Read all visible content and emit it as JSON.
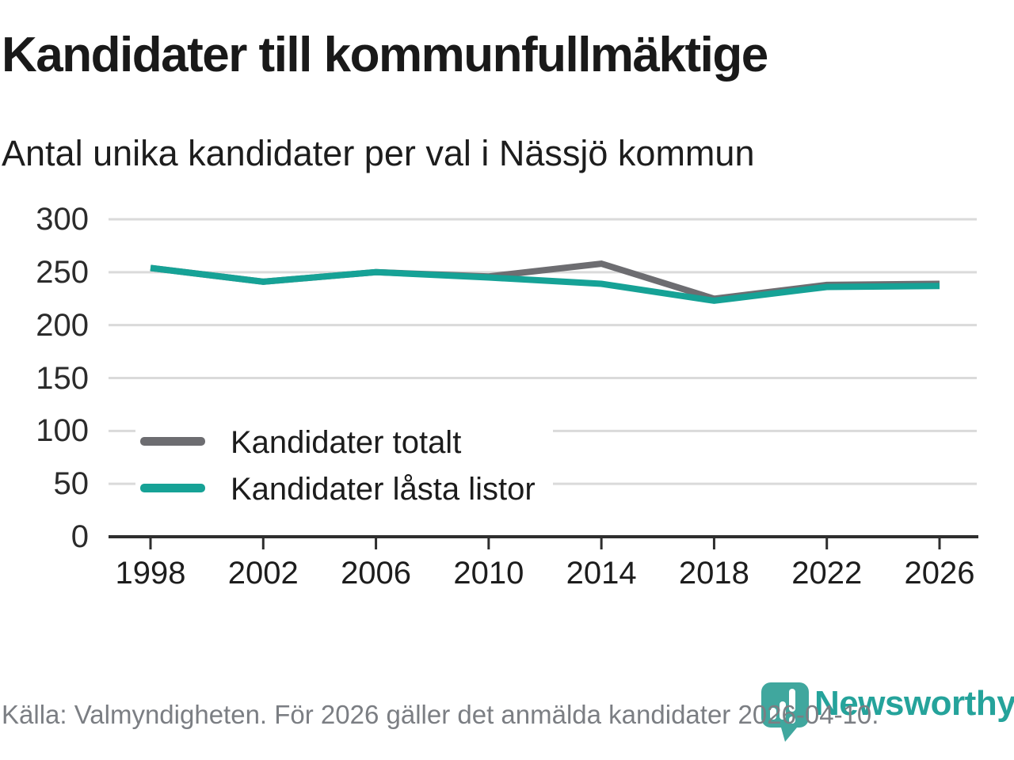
{
  "header": {
    "title": "Kandidater till kommunfullmäktige",
    "subtitle": "Antal unika kandidater per val i Nässjö kommun"
  },
  "chart_data": {
    "type": "line",
    "x": [
      1998,
      2002,
      2006,
      2010,
      2014,
      2018,
      2022,
      2026
    ],
    "series": [
      {
        "name": "Kandidater totalt",
        "color": "#6d6d71",
        "values": [
          254,
          241,
          250,
          246,
          258,
          225,
          238,
          239
        ]
      },
      {
        "name": "Kandidater låsta listor",
        "color": "#16a296",
        "values": [
          254,
          241,
          250,
          245,
          239,
          223,
          236,
          237
        ]
      }
    ],
    "title": "Kandidater till kommunfullmäktige",
    "subtitle": "Antal unika kandidater per val i Nässjö kommun",
    "xlabel": "",
    "ylabel": "",
    "ylim": [
      0,
      300
    ],
    "yticks": [
      0,
      50,
      100,
      150,
      200,
      250,
      300
    ],
    "grid": true,
    "legend_position": "inside-lower-left",
    "colors": {
      "gridline": "#dadada",
      "axis": "#2e2e2e"
    }
  },
  "legend": {
    "items": [
      {
        "label": "Kandidater totalt",
        "color": "#6d6d71"
      },
      {
        "label": "Kandidater låsta listor",
        "color": "#16a296"
      }
    ]
  },
  "footer": {
    "source": "Källa: Valmyndigheten. För 2026 gäller det anmälda kandidater 2026-04-10."
  },
  "logo": {
    "brand": "Newsworthy",
    "color": "#25a39b",
    "icon_color": "#40a79e",
    "icon": "newsworthy-pin-barchart-icon"
  }
}
